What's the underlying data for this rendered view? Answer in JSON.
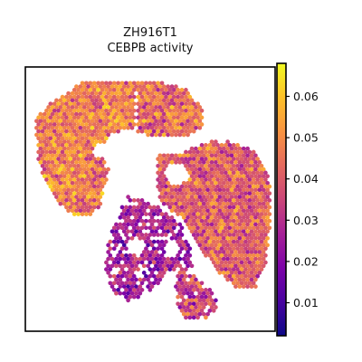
{
  "chart_data": {
    "type": "heatmap",
    "subtype": "spatial-hex-spot-map",
    "title_lines": [
      "ZH916T1",
      "CEBPB activity"
    ],
    "xlabel": "",
    "ylabel": "",
    "colormap": "plasma",
    "colorbar": {
      "min": 0.002,
      "max": 0.068,
      "ticks": [
        0.01,
        0.02,
        0.03,
        0.04,
        0.05,
        0.06
      ],
      "tick_labels": [
        "0.01",
        "0.02",
        "0.03",
        "0.04",
        "0.05",
        "0.06"
      ],
      "placement": "right"
    },
    "axes": {
      "ticks_visible": false,
      "grid": false,
      "frame": true
    },
    "tissue_regions": [
      {
        "name": "upper-left-lobe",
        "value_mean": 0.047,
        "value_spread": 0.012
      },
      {
        "name": "upper-right-band",
        "value_mean": 0.043,
        "value_spread": 0.012
      },
      {
        "name": "right-lobe",
        "value_mean": 0.041,
        "value_spread": 0.012
      },
      {
        "name": "lower-center-strands",
        "value_mean": 0.026,
        "value_spread": 0.012
      },
      {
        "name": "bottom-center",
        "value_mean": 0.035,
        "value_spread": 0.012
      }
    ]
  }
}
